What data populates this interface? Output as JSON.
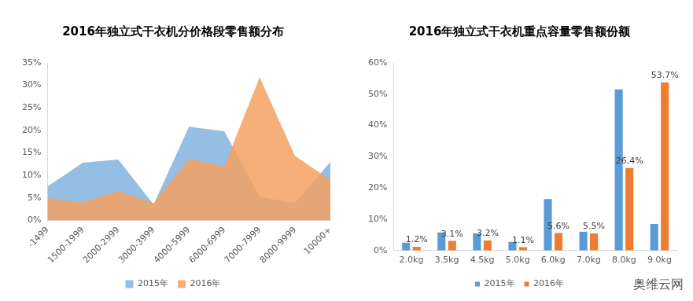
{
  "chart_data": [
    {
      "type": "area",
      "title": "2016年独立式干衣机分价格段零售额分布",
      "categories": [
        "-1499",
        "1500-1999",
        "2000-2999",
        "3000-3999",
        "4000-5999",
        "6000-6999",
        "7000-7999",
        "8000-9999",
        "10000+"
      ],
      "series": [
        {
          "name": "2015年",
          "color": "#5b9bd5",
          "values": [
            7.5,
            12.8,
            13.5,
            3.5,
            20.8,
            19.8,
            5.2,
            3.8,
            13.0
          ]
        },
        {
          "name": "2016年",
          "color": "#f4a160",
          "values": [
            5.0,
            4.0,
            6.5,
            3.8,
            13.7,
            12.0,
            31.8,
            14.3,
            9.0
          ]
        }
      ],
      "ylim": [
        0,
        35
      ],
      "yticks": [
        {
          "value": 0,
          "label": "0%"
        },
        {
          "value": 5,
          "label": "5%"
        },
        {
          "value": 10,
          "label": "10%"
        },
        {
          "value": 15,
          "label": "15%"
        },
        {
          "value": 20,
          "label": "20%"
        },
        {
          "value": 25,
          "label": "25%"
        },
        {
          "value": 30,
          "label": "30%"
        },
        {
          "value": 35,
          "label": "35%"
        }
      ],
      "grid": false,
      "legend": "bottom"
    },
    {
      "type": "bar",
      "title": "2016年独立式干衣机重点容量零售额份额",
      "categories": [
        "2.0kg",
        "3.5kg",
        "4.5kg",
        "5.0kg",
        "6.0kg",
        "7.0kg",
        "8.0kg",
        "9.0kg"
      ],
      "series": [
        {
          "name": "2015年",
          "color": "#5b9bd5",
          "values": [
            2.5,
            5.8,
            5.5,
            2.8,
            16.5,
            6.0,
            51.5,
            8.5
          ]
        },
        {
          "name": "2016年",
          "color": "#ed7d31",
          "values": [
            1.2,
            3.1,
            3.2,
            1.1,
            5.6,
            5.5,
            26.4,
            53.7
          ],
          "data_labels": true,
          "value_labels": [
            "1.2%",
            "3.1%",
            "3.2%",
            "1.1%",
            "5.6%",
            "5.5%",
            "26.4%",
            "53.7%"
          ]
        }
      ],
      "ylim": [
        0,
        60
      ],
      "yticks": [
        {
          "value": 0,
          "label": "0%"
        },
        {
          "value": 10,
          "label": "10%"
        },
        {
          "value": 20,
          "label": "20%"
        },
        {
          "value": 30,
          "label": "30%"
        },
        {
          "value": 40,
          "label": "40%"
        },
        {
          "value": 50,
          "label": "50%"
        },
        {
          "value": 60,
          "label": "60%"
        }
      ],
      "grid": false,
      "legend": "bottom"
    }
  ],
  "watermark": "奥维云网"
}
